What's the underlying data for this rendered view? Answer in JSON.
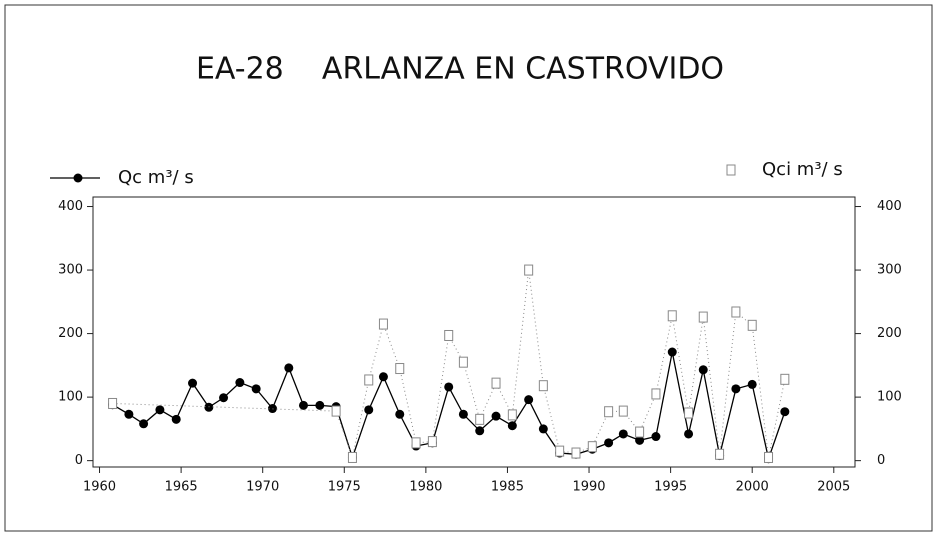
{
  "chart_data": {
    "type": "line",
    "title": "EA-28    ARLANZA EN CASTROVIDO",
    "xlim": [
      1959.6,
      2006.3
    ],
    "xticks": [
      1960,
      1965,
      1970,
      1975,
      1980,
      1985,
      1990,
      1995,
      2000,
      2005
    ],
    "ylim": [
      -10,
      415
    ],
    "yticks": [
      0,
      100,
      200,
      300,
      400
    ],
    "y2lim": [
      -10,
      415
    ],
    "y2ticks": [
      0,
      100,
      200,
      300,
      400
    ],
    "grid": false,
    "series": [
      {
        "name": "Qc m³/ s",
        "color": "#000000",
        "marker": "circle",
        "linestyle": "solid",
        "x": [
          1960.8,
          1961.8,
          1962.7,
          1963.7,
          1964.7,
          1965.7,
          1966.7,
          1967.6,
          1968.6,
          1969.6,
          1970.6,
          1971.6,
          1972.5,
          1973.5,
          1974.5,
          1975.5,
          1976.5,
          1977.4,
          1978.4,
          1979.4,
          1980.4,
          1981.4,
          1982.3,
          1983.3,
          1984.3,
          1985.3,
          1986.3,
          1987.2,
          1988.2,
          1989.2,
          1990.2,
          1991.2,
          1992.1,
          1993.1,
          1994.1,
          1995.1,
          1996.1,
          1997.0,
          1998.0,
          1999.0,
          2000.0,
          2001.0,
          2002.0
        ],
        "values": [
          88,
          73,
          58,
          80,
          65,
          122,
          84,
          99,
          123,
          113,
          82,
          146,
          87,
          87,
          85,
          5,
          80,
          132,
          73,
          23,
          28,
          116,
          73,
          47,
          70,
          55,
          96,
          50,
          12,
          10,
          18,
          28,
          42,
          32,
          38,
          171,
          42,
          143,
          8,
          113,
          120,
          3,
          77
        ]
      },
      {
        "name": "Qci m³/ s",
        "color": "#888888",
        "marker": "square",
        "linestyle": "dotted",
        "axis": "y2",
        "x": [
          1960.8,
          1974.5,
          1975.5,
          1976.5,
          1977.4,
          1978.4,
          1979.4,
          1980.4,
          1981.4,
          1982.3,
          1983.3,
          1984.3,
          1985.3,
          1986.3,
          1987.2,
          1988.2,
          1989.2,
          1990.2,
          1991.2,
          1992.1,
          1993.1,
          1994.1,
          1995.1,
          1996.1,
          1997.0,
          1998.0,
          1999.0,
          2000.0,
          2001.0,
          2002.0
        ],
        "values": [
          90,
          78,
          5,
          127,
          215,
          145,
          28,
          30,
          197,
          155,
          65,
          122,
          72,
          300,
          118,
          15,
          12,
          22,
          77,
          78,
          45,
          105,
          228,
          75,
          226,
          10,
          234,
          213,
          5,
          128
        ]
      }
    ]
  }
}
